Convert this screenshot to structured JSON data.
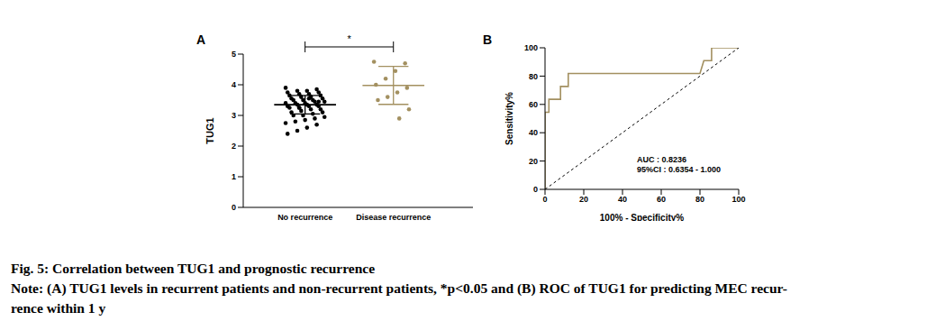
{
  "chart_data": [
    {
      "type": "dot_plot",
      "panel": "A",
      "y_label": "TUG1",
      "categories": [
        "No recurrence",
        "Disease recurrence"
      ],
      "values": [
        [
          3.9,
          3.85,
          3.8,
          3.8,
          3.75,
          3.75,
          3.7,
          3.7,
          3.65,
          3.65,
          3.6,
          3.6,
          3.55,
          3.55,
          3.5,
          3.5,
          3.5,
          3.45,
          3.45,
          3.4,
          3.4,
          3.4,
          3.35,
          3.35,
          3.35,
          3.3,
          3.3,
          3.3,
          3.25,
          3.25,
          3.2,
          3.2,
          3.15,
          3.1,
          3.1,
          3.05,
          3.0,
          3.0,
          2.95,
          2.9,
          2.85,
          2.8,
          2.75,
          2.7,
          2.6,
          2.5,
          2.4,
          3.45,
          3.55,
          3.25
        ],
        [
          4.75,
          4.7,
          4.45,
          4.2,
          4.0,
          3.9,
          3.75,
          3.6,
          3.5,
          3.2,
          2.9
        ]
      ],
      "mean": [
        3.35,
        3.98
      ],
      "sd": [
        0.3,
        0.62
      ],
      "colors": [
        "#000000",
        "#a39060"
      ],
      "ylim": [
        0,
        5
      ],
      "yticks": [
        0,
        1,
        2,
        3,
        4,
        5
      ],
      "annotations": [
        "*"
      ]
    },
    {
      "type": "line",
      "panel": "B",
      "x_label": "100% - Specificity%",
      "y_label": "Sensitivity%",
      "series": [
        {
          "x": [
            0,
            0,
            2,
            2,
            8,
            8,
            12,
            12,
            80,
            82,
            86,
            86,
            100
          ],
          "values": [
            0,
            54.5,
            54.5,
            63.6,
            63.6,
            72.7,
            72.7,
            81.8,
            81.8,
            90.9,
            90.9,
            100,
            100
          ],
          "color": "#a39060",
          "line_style": "solid"
        },
        {
          "x": [
            0,
            100
          ],
          "values": [
            0,
            100
          ],
          "color": "#000000",
          "line_style": "dashed"
        }
      ],
      "xlim": [
        0,
        100
      ],
      "xticks": [
        0,
        20,
        40,
        60,
        80,
        100
      ],
      "ylim": [
        0,
        100
      ],
      "yticks": [
        0,
        20,
        40,
        60,
        80,
        100
      ],
      "annotations": [
        "AUC : 0.8236",
        "95%CI : 0.6354 - 1.000"
      ]
    }
  ],
  "caption": {
    "title": "Fig. 5: Correlation between TUG1 and prognostic recurrence",
    "note_lines": [
      "Note: (A) TUG1 levels in recurrent patients and non-recurrent patients, *p<0.05 and (B) ROC of TUG1 for predicting MEC recur-",
      "rence within 1 y"
    ]
  }
}
